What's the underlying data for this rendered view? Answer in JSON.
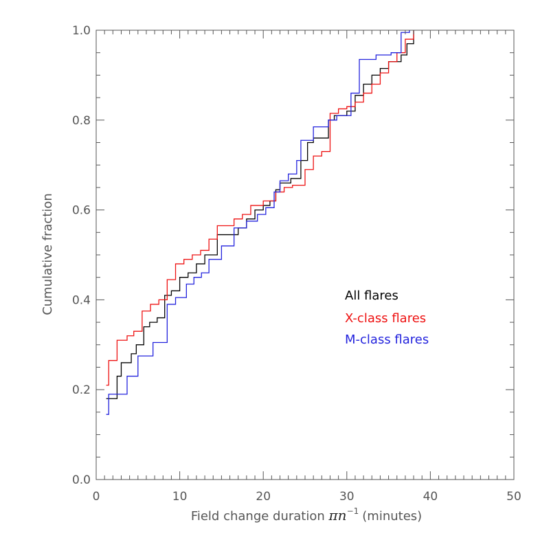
{
  "chart_data": {
    "type": "line",
    "step": true,
    "xlabel": "Field change duration",
    "xlabel_math": "πn",
    "xlabel_exp": "−1",
    "xlabel_units": "(minutes)",
    "ylabel": "Cumulative fraction",
    "xlim": [
      0,
      50
    ],
    "ylim": [
      0,
      1
    ],
    "x_ticks": [
      0,
      10,
      20,
      30,
      40,
      50
    ],
    "x_tick_labels": [
      "0",
      "10",
      "20",
      "30",
      "40",
      "50"
    ],
    "y_ticks": [
      0,
      0.2,
      0.4,
      0.6,
      0.8,
      1.0
    ],
    "y_tick_labels": [
      "0.0",
      "0.2",
      "0.4",
      "0.6",
      "0.8",
      "1.0"
    ],
    "legend_position": "right-middle",
    "grid": false,
    "series": [
      {
        "name": "All flares",
        "color": "#000000",
        "x": [
          1.2,
          2.5,
          3.0,
          3.7,
          4.2,
          4.8,
          5.7,
          6.4,
          7.3,
          8.2,
          9.0,
          10.0,
          11.0,
          12.0,
          13.0,
          14.5,
          17.0,
          18.0,
          19.0,
          20.0,
          20.8,
          21.5,
          22.0,
          22.5,
          23.3,
          24.5,
          25.3,
          26.0,
          27.8,
          28.5,
          30.0,
          31.0,
          32.0,
          33.0,
          34.0,
          35.0,
          36.5,
          37.2,
          38.0
        ],
        "y": [
          0.18,
          0.23,
          0.26,
          0.26,
          0.28,
          0.3,
          0.34,
          0.35,
          0.36,
          0.41,
          0.42,
          0.45,
          0.46,
          0.48,
          0.5,
          0.545,
          0.56,
          0.58,
          0.6,
          0.61,
          0.62,
          0.645,
          0.66,
          0.66,
          0.67,
          0.71,
          0.75,
          0.76,
          0.8,
          0.81,
          0.82,
          0.855,
          0.88,
          0.9,
          0.915,
          0.93,
          0.945,
          0.97,
          1.0
        ]
      },
      {
        "name": "X-class flares",
        "color": "#ee1111",
        "x": [
          1.2,
          1.5,
          2.5,
          3.7,
          4.5,
          5.5,
          6.5,
          7.5,
          8.5,
          9.5,
          10.5,
          11.5,
          12.5,
          13.5,
          14.5,
          16.5,
          17.5,
          18.5,
          20.0,
          21.5,
          22.5,
          23.5,
          25.0,
          26.0,
          27.0,
          28.0,
          29.0,
          30.0,
          31.0,
          32.0,
          33.0,
          34.0,
          35.0,
          36.0,
          37.0,
          38.0
        ],
        "y": [
          0.21,
          0.265,
          0.31,
          0.32,
          0.33,
          0.375,
          0.39,
          0.4,
          0.445,
          0.48,
          0.49,
          0.5,
          0.51,
          0.535,
          0.565,
          0.58,
          0.59,
          0.61,
          0.62,
          0.64,
          0.65,
          0.655,
          0.69,
          0.72,
          0.73,
          0.815,
          0.825,
          0.83,
          0.84,
          0.86,
          0.88,
          0.905,
          0.93,
          0.95,
          0.98,
          1.0
        ]
      },
      {
        "name": "M-class flares",
        "color": "#2222dd",
        "x": [
          1.2,
          1.5,
          3.7,
          5.0,
          6.8,
          8.5,
          9.5,
          10.8,
          11.7,
          12.6,
          13.5,
          15.0,
          16.5,
          18.0,
          19.3,
          20.3,
          21.3,
          22.0,
          23.0,
          24.0,
          24.5,
          26.0,
          27.8,
          28.8,
          30.5,
          31.5,
          33.5,
          35.3,
          36.5,
          37.5
        ],
        "y": [
          0.145,
          0.19,
          0.23,
          0.275,
          0.305,
          0.39,
          0.405,
          0.435,
          0.45,
          0.46,
          0.49,
          0.52,
          0.56,
          0.575,
          0.59,
          0.605,
          0.64,
          0.665,
          0.68,
          0.71,
          0.755,
          0.785,
          0.8,
          0.81,
          0.86,
          0.935,
          0.945,
          0.95,
          0.995,
          1.0
        ]
      }
    ]
  }
}
